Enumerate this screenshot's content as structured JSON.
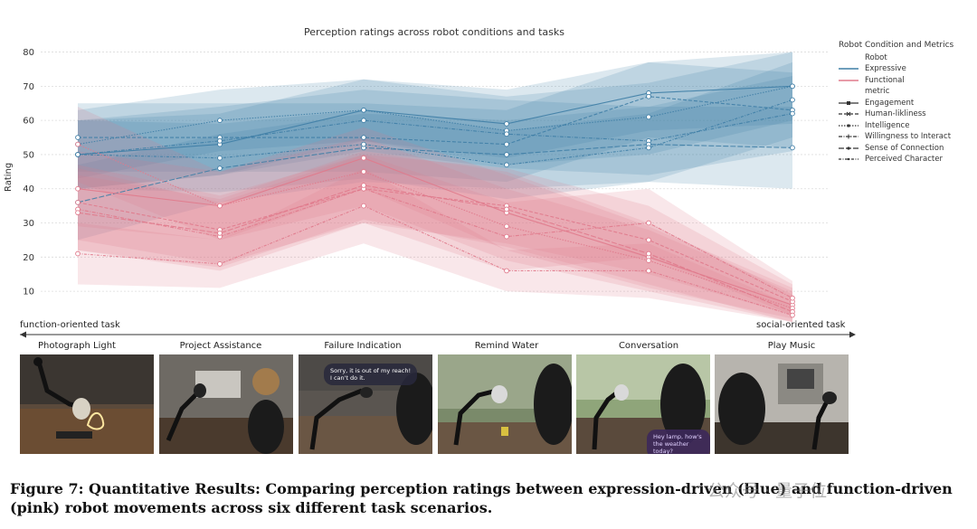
{
  "chart_data": {
    "type": "line",
    "title": "Perception ratings across robot conditions and tasks",
    "ylabel": "Rating",
    "xlabel": "",
    "ylim": [
      5,
      82
    ],
    "yticks": [
      10,
      20,
      30,
      40,
      50,
      60,
      70,
      80
    ],
    "grid": true,
    "legend_placement": "right",
    "categories": [
      "Photograph Light",
      "Project Assistance",
      "Failure Indication",
      "Remind Water",
      "Conversation",
      "Play Music"
    ],
    "legend": {
      "title": "Robot Condition and Metrics",
      "robot_header": "Robot",
      "robots": [
        {
          "name": "Expressive",
          "color": "#3f7ea6"
        },
        {
          "name": "Functional",
          "color": "#e07a8c"
        }
      ],
      "metric_header": "metric",
      "metrics": [
        "Engagement",
        "Human-likliness",
        "Intelligence",
        "Willingness to Interact",
        "Sense of Connection",
        "Perceived Character"
      ]
    },
    "series": [
      {
        "robot": "Expressive",
        "metric": "Engagement",
        "values": [
          50,
          53,
          63,
          59,
          68,
          70
        ],
        "low": [
          40,
          44,
          54,
          49,
          57,
          59
        ],
        "high": [
          60,
          62,
          72,
          69,
          77,
          80
        ]
      },
      {
        "robot": "Expressive",
        "metric": "Human-likliness",
        "values": [
          55,
          55,
          55,
          53,
          67,
          63
        ],
        "low": [
          45,
          45,
          45,
          42,
          55,
          52
        ],
        "high": [
          65,
          65,
          65,
          63,
          77,
          74
        ]
      },
      {
        "robot": "Expressive",
        "metric": "Intelligence",
        "values": [
          53,
          60,
          63,
          57,
          61,
          70
        ],
        "low": [
          43,
          51,
          54,
          47,
          50,
          60
        ],
        "high": [
          63,
          69,
          72,
          67,
          71,
          80
        ]
      },
      {
        "robot": "Expressive",
        "metric": "Willingness to Interact",
        "values": [
          50,
          54,
          60,
          56,
          54,
          62
        ],
        "low": [
          40,
          44,
          51,
          46,
          44,
          51
        ],
        "high": [
          60,
          64,
          69,
          66,
          64,
          73
        ]
      },
      {
        "robot": "Expressive",
        "metric": "Sense of Connection",
        "values": [
          36,
          46,
          52,
          50,
          53,
          52
        ],
        "low": [
          25,
          36,
          42,
          40,
          42,
          40
        ],
        "high": [
          47,
          56,
          62,
          60,
          64,
          64
        ]
      },
      {
        "robot": "Expressive",
        "metric": "Perceived Character",
        "values": [
          50,
          49,
          53,
          47,
          52,
          66
        ],
        "low": [
          40,
          39,
          43,
          37,
          42,
          55
        ],
        "high": [
          60,
          59,
          63,
          57,
          62,
          77
        ]
      },
      {
        "robot": "Functional",
        "metric": "Engagement",
        "values": [
          40,
          35,
          49,
          33,
          20,
          6
        ],
        "low": [
          29,
          25,
          40,
          22,
          11,
          2
        ],
        "high": [
          51,
          45,
          58,
          44,
          29,
          11
        ]
      },
      {
        "robot": "Functional",
        "metric": "Human-likliness",
        "values": [
          36,
          28,
          40,
          35,
          25,
          7
        ],
        "low": [
          25,
          18,
          30,
          24,
          15,
          3
        ],
        "high": [
          47,
          38,
          50,
          46,
          35,
          12
        ]
      },
      {
        "robot": "Functional",
        "metric": "Intelligence",
        "values": [
          53,
          35,
          45,
          29,
          19,
          5
        ],
        "low": [
          42,
          25,
          35,
          19,
          10,
          1
        ],
        "high": [
          64,
          45,
          55,
          40,
          28,
          10
        ]
      },
      {
        "robot": "Functional",
        "metric": "Willingness to Interact",
        "values": [
          34,
          26,
          40,
          26,
          30,
          8
        ],
        "low": [
          22,
          16,
          30,
          16,
          20,
          3
        ],
        "high": [
          46,
          36,
          50,
          36,
          40,
          13
        ]
      },
      {
        "robot": "Functional",
        "metric": "Sense of Connection",
        "values": [
          33,
          27,
          41,
          34,
          21,
          4
        ],
        "low": [
          22,
          17,
          31,
          23,
          12,
          1
        ],
        "high": [
          44,
          37,
          51,
          45,
          30,
          9
        ]
      },
      {
        "robot": "Functional",
        "metric": "Perceived Character",
        "values": [
          21,
          18,
          35,
          16,
          16,
          3
        ],
        "low": [
          12,
          11,
          24,
          10,
          8,
          1
        ],
        "high": [
          30,
          25,
          46,
          22,
          24,
          6
        ]
      }
    ]
  },
  "axis_arrow": {
    "left_label": "function-oriented task",
    "right_label": "social-oriented task"
  },
  "tasks": [
    {
      "title": "Photograph Light"
    },
    {
      "title": "Project Assistance"
    },
    {
      "title": "Failure Indication",
      "bubble": "Sorry, it is out of my reach!\nI can't do it."
    },
    {
      "title": "Remind Water"
    },
    {
      "title": "Conversation",
      "bubble": "Hey lamp, how's\nthe weather today?"
    },
    {
      "title": "Play Music"
    }
  ],
  "caption": "Figure 7: Quantitative Results: Comparing perception ratings between expression-driven (blue) and function-driven (pink) robot movements across six different task scenarios.",
  "watermark": "公众号 · 量子位"
}
